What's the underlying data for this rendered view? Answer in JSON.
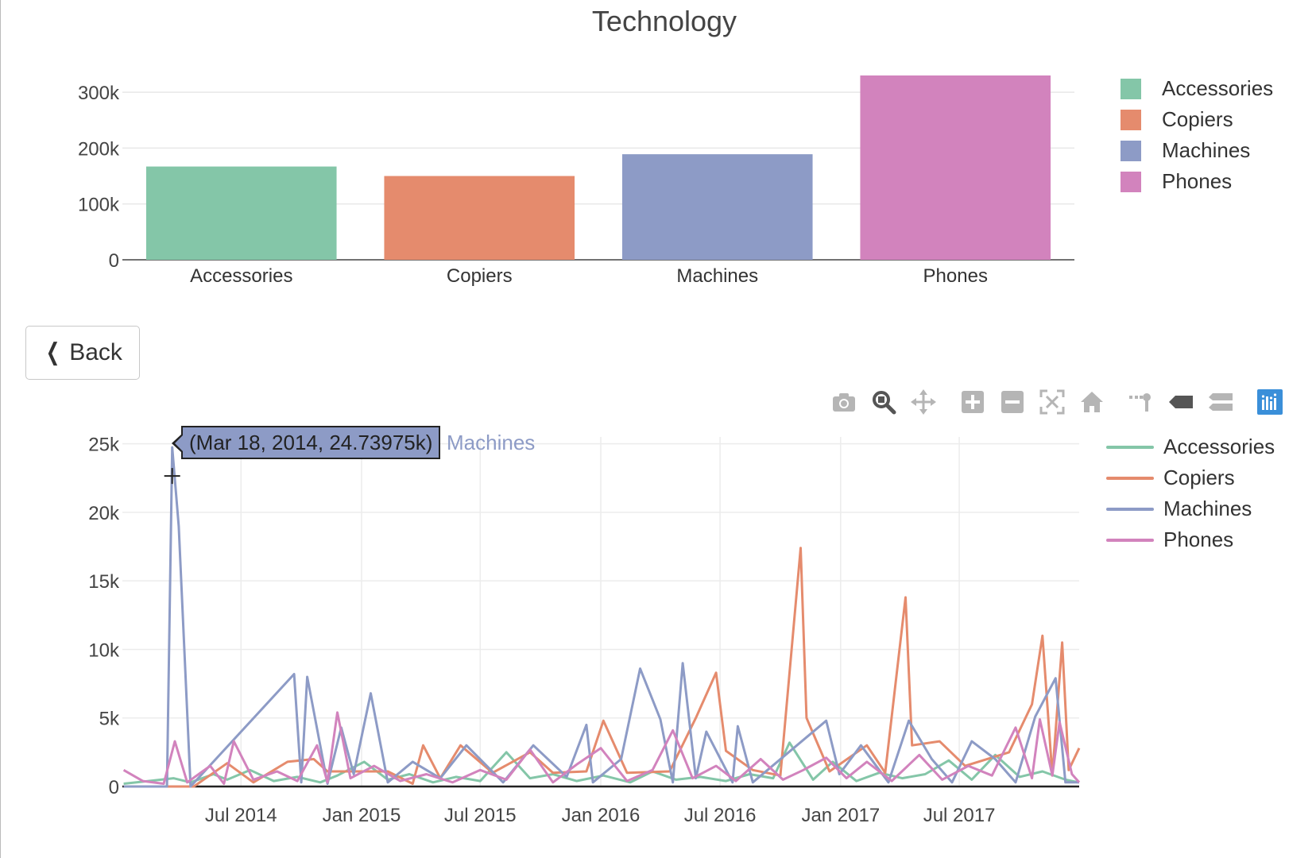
{
  "title": "Technology",
  "back_button": {
    "label": "Back",
    "icon": "chevron-left-icon"
  },
  "modebar": [
    {
      "name": "camera-icon",
      "title": "Download plot as a png"
    },
    {
      "name": "zoom-icon",
      "title": "Zoom"
    },
    {
      "name": "pan-icon",
      "title": "Pan"
    },
    {
      "name": "zoom-in-icon",
      "title": "Zoom in"
    },
    {
      "name": "zoom-out-icon",
      "title": "Zoom out"
    },
    {
      "name": "autoscale-icon",
      "title": "Autoscale"
    },
    {
      "name": "home-icon",
      "title": "Reset axes"
    },
    {
      "name": "spike-lines-icon",
      "title": "Toggle Spike Lines"
    },
    {
      "name": "hover-closest-icon",
      "title": "Show closest data on hover"
    },
    {
      "name": "hover-compare-icon",
      "title": "Compare data on hover"
    },
    {
      "name": "plotly-logo-icon",
      "title": "Produced with Plotly"
    }
  ],
  "colors": {
    "Accessories": "#84c6a8",
    "Copiers": "#e58b6d",
    "Machines": "#8d9bc6",
    "Phones": "#d283bd"
  },
  "tooltip": {
    "text": "(Mar 18, 2014, 24.73975k)",
    "series": "Machines"
  },
  "chart_data": [
    {
      "type": "bar",
      "title": "Technology",
      "categories": [
        "Accessories",
        "Copiers",
        "Machines",
        "Phones"
      ],
      "values": [
        167000,
        150000,
        189000,
        330000
      ],
      "ylim": [
        0,
        330000
      ],
      "yticks": [
        0,
        100000,
        200000,
        300000
      ],
      "ytick_labels": [
        "0",
        "100k",
        "200k",
        "300k"
      ],
      "legend": [
        "Accessories",
        "Copiers",
        "Machines",
        "Phones"
      ],
      "legend_position": "top-right",
      "grid": true
    },
    {
      "type": "line",
      "xlim": [
        "2014-01-01",
        "2017-12-31"
      ],
      "ylim": [
        0,
        25500
      ],
      "yticks": [
        0,
        5000,
        10000,
        15000,
        20000,
        25000
      ],
      "ytick_labels": [
        "0",
        "5k",
        "10k",
        "15k",
        "20k",
        "25k"
      ],
      "xticks": [
        "2014-07-01",
        "2015-01-01",
        "2015-07-01",
        "2016-01-01",
        "2016-07-01",
        "2017-01-01",
        "2017-07-01"
      ],
      "xtick_labels": [
        "Jul 2014",
        "Jan 2015",
        "Jul 2015",
        "Jan 2016",
        "Jul 2016",
        "Jan 2017",
        "Jul 2017"
      ],
      "legend_position": "top-right",
      "grid": true,
      "series": [
        {
          "name": "Accessories",
          "points": [
            [
              "2014-01-03",
              200
            ],
            [
              "2014-02-10",
              400
            ],
            [
              "2014-03-20",
              600
            ],
            [
              "2014-04-15",
              300
            ],
            [
              "2014-05-20",
              900
            ],
            [
              "2014-06-10",
              500
            ],
            [
              "2014-07-15",
              1200
            ],
            [
              "2014-08-20",
              400
            ],
            [
              "2014-09-25",
              700
            ],
            [
              "2014-10-30",
              300
            ],
            [
              "2014-11-25",
              800
            ],
            [
              "2015-01-05",
              1800
            ],
            [
              "2015-02-10",
              500
            ],
            [
              "2015-03-15",
              900
            ],
            [
              "2015-04-20",
              300
            ],
            [
              "2015-05-25",
              700
            ],
            [
              "2015-07-01",
              400
            ],
            [
              "2015-08-10",
              2500
            ],
            [
              "2015-09-15",
              600
            ],
            [
              "2015-10-20",
              900
            ],
            [
              "2015-11-25",
              400
            ],
            [
              "2016-01-05",
              800
            ],
            [
              "2016-02-15",
              300
            ],
            [
              "2016-03-20",
              1100
            ],
            [
              "2016-04-25",
              500
            ],
            [
              "2016-06-01",
              700
            ],
            [
              "2016-07-10",
              400
            ],
            [
              "2016-08-15",
              900
            ],
            [
              "2016-09-20",
              600
            ],
            [
              "2016-10-15",
              3200
            ],
            [
              "2016-11-20",
              500
            ],
            [
              "2016-12-20",
              1800
            ],
            [
              "2017-01-25",
              400
            ],
            [
              "2017-03-01",
              1000
            ],
            [
              "2017-04-05",
              600
            ],
            [
              "2017-05-10",
              900
            ],
            [
              "2017-06-15",
              1900
            ],
            [
              "2017-07-20",
              500
            ],
            [
              "2017-08-25",
              2300
            ],
            [
              "2017-10-01",
              700
            ],
            [
              "2017-11-05",
              1100
            ],
            [
              "2017-12-10",
              500
            ],
            [
              "2017-12-30",
              300
            ]
          ]
        },
        {
          "name": "Copiers",
          "points": [
            [
              "2014-01-03",
              0
            ],
            [
              "2014-04-20",
              0
            ],
            [
              "2014-06-10",
              1700
            ],
            [
              "2014-07-20",
              300
            ],
            [
              "2014-09-10",
              1800
            ],
            [
              "2014-10-20",
              2000
            ],
            [
              "2014-11-10",
              1100
            ],
            [
              "2015-02-10",
              1100
            ],
            [
              "2015-03-20",
              200
            ],
            [
              "2015-04-05",
              3000
            ],
            [
              "2015-05-01",
              600
            ],
            [
              "2015-06-01",
              3000
            ],
            [
              "2015-07-20",
              1000
            ],
            [
              "2015-09-15",
              2500
            ],
            [
              "2015-10-20",
              1000
            ],
            [
              "2015-12-10",
              1100
            ],
            [
              "2016-01-05",
              4800
            ],
            [
              "2016-02-10",
              1000
            ],
            [
              "2016-04-15",
              1100
            ],
            [
              "2016-05-25",
              5000
            ],
            [
              "2016-06-25",
              8300
            ],
            [
              "2016-07-10",
              2600
            ],
            [
              "2016-08-20",
              1200
            ],
            [
              "2016-10-01",
              800
            ],
            [
              "2016-11-01",
              17400
            ],
            [
              "2016-11-10",
              5000
            ],
            [
              "2016-12-15",
              1100
            ],
            [
              "2017-02-10",
              3000
            ],
            [
              "2017-03-10",
              1000
            ],
            [
              "2017-04-10",
              13800
            ],
            [
              "2017-04-20",
              3000
            ],
            [
              "2017-06-01",
              3300
            ],
            [
              "2017-07-10",
              1500
            ],
            [
              "2017-09-15",
              2500
            ],
            [
              "2017-10-20",
              6000
            ],
            [
              "2017-11-05",
              11000
            ],
            [
              "2017-11-20",
              800
            ],
            [
              "2017-12-05",
              10500
            ],
            [
              "2017-12-15",
              1200
            ],
            [
              "2017-12-31",
              2800
            ]
          ]
        },
        {
          "name": "Machines",
          "points": [
            [
              "2014-01-03",
              0
            ],
            [
              "2014-03-10",
              0
            ],
            [
              "2014-03-18",
              24740
            ],
            [
              "2014-03-28",
              19000
            ],
            [
              "2014-04-15",
              0
            ],
            [
              "2014-09-20",
              8200
            ],
            [
              "2014-10-01",
              300
            ],
            [
              "2014-10-10",
              8000
            ],
            [
              "2014-11-10",
              200
            ],
            [
              "2014-12-01",
              4300
            ],
            [
              "2014-12-20",
              900
            ],
            [
              "2015-01-15",
              6800
            ],
            [
              "2015-02-10",
              300
            ],
            [
              "2015-03-20",
              1800
            ],
            [
              "2015-05-01",
              600
            ],
            [
              "2015-06-10",
              3000
            ],
            [
              "2015-08-05",
              300
            ],
            [
              "2015-09-20",
              3000
            ],
            [
              "2015-11-10",
              700
            ],
            [
              "2015-12-10",
              4500
            ],
            [
              "2015-12-20",
              300
            ],
            [
              "2016-02-01",
              2000
            ],
            [
              "2016-03-01",
              8600
            ],
            [
              "2016-04-01",
              4900
            ],
            [
              "2016-04-20",
              300
            ],
            [
              "2016-05-05",
              9000
            ],
            [
              "2016-05-25",
              600
            ],
            [
              "2016-06-10",
              4000
            ],
            [
              "2016-07-20",
              300
            ],
            [
              "2016-07-28",
              4400
            ],
            [
              "2016-08-20",
              300
            ],
            [
              "2016-12-10",
              4800
            ],
            [
              "2016-12-30",
              900
            ],
            [
              "2017-02-01",
              3000
            ],
            [
              "2017-03-15",
              300
            ],
            [
              "2017-04-15",
              4800
            ],
            [
              "2017-05-20",
              2000
            ],
            [
              "2017-06-20",
              300
            ],
            [
              "2017-07-20",
              3300
            ],
            [
              "2017-08-25",
              2000
            ],
            [
              "2017-09-25",
              300
            ],
            [
              "2017-10-25",
              5100
            ],
            [
              "2017-11-25",
              7900
            ],
            [
              "2017-12-10",
              300
            ],
            [
              "2017-12-31",
              300
            ]
          ]
        },
        {
          "name": "Phones",
          "points": [
            [
              "2014-01-03",
              1200
            ],
            [
              "2014-02-01",
              400
            ],
            [
              "2014-03-05",
              200
            ],
            [
              "2014-03-22",
              3300
            ],
            [
              "2014-04-10",
              300
            ],
            [
              "2014-05-15",
              1500
            ],
            [
              "2014-06-05",
              200
            ],
            [
              "2014-06-20",
              3300
            ],
            [
              "2014-07-20",
              500
            ],
            [
              "2014-08-25",
              1100
            ],
            [
              "2014-09-25",
              400
            ],
            [
              "2014-10-25",
              3000
            ],
            [
              "2014-11-10",
              300
            ],
            [
              "2014-11-25",
              5400
            ],
            [
              "2014-12-15",
              600
            ],
            [
              "2015-01-20",
              1500
            ],
            [
              "2015-03-01",
              400
            ],
            [
              "2015-04-10",
              900
            ],
            [
              "2015-05-20",
              300
            ],
            [
              "2015-07-01",
              1200
            ],
            [
              "2015-08-10",
              500
            ],
            [
              "2015-09-15",
              2700
            ],
            [
              "2015-10-20",
              300
            ],
            [
              "2015-11-25",
              1600
            ],
            [
              "2016-01-01",
              2800
            ],
            [
              "2016-02-10",
              400
            ],
            [
              "2016-03-20",
              1200
            ],
            [
              "2016-04-20",
              4100
            ],
            [
              "2016-05-20",
              600
            ],
            [
              "2016-06-25",
              1500
            ],
            [
              "2016-07-25",
              400
            ],
            [
              "2016-09-01",
              2000
            ],
            [
              "2016-10-05",
              500
            ],
            [
              "2016-11-05",
              1200
            ],
            [
              "2016-12-10",
              2100
            ],
            [
              "2017-01-10",
              600
            ],
            [
              "2017-02-10",
              1800
            ],
            [
              "2017-03-20",
              400
            ],
            [
              "2017-05-01",
              2300
            ],
            [
              "2017-06-05",
              500
            ],
            [
              "2017-07-15",
              1500
            ],
            [
              "2017-08-20",
              800
            ],
            [
              "2017-09-25",
              4300
            ],
            [
              "2017-10-20",
              600
            ],
            [
              "2017-11-01",
              4900
            ],
            [
              "2017-11-20",
              800
            ],
            [
              "2017-12-01",
              4700
            ],
            [
              "2017-12-20",
              900
            ],
            [
              "2017-12-31",
              300
            ]
          ]
        }
      ]
    }
  ]
}
